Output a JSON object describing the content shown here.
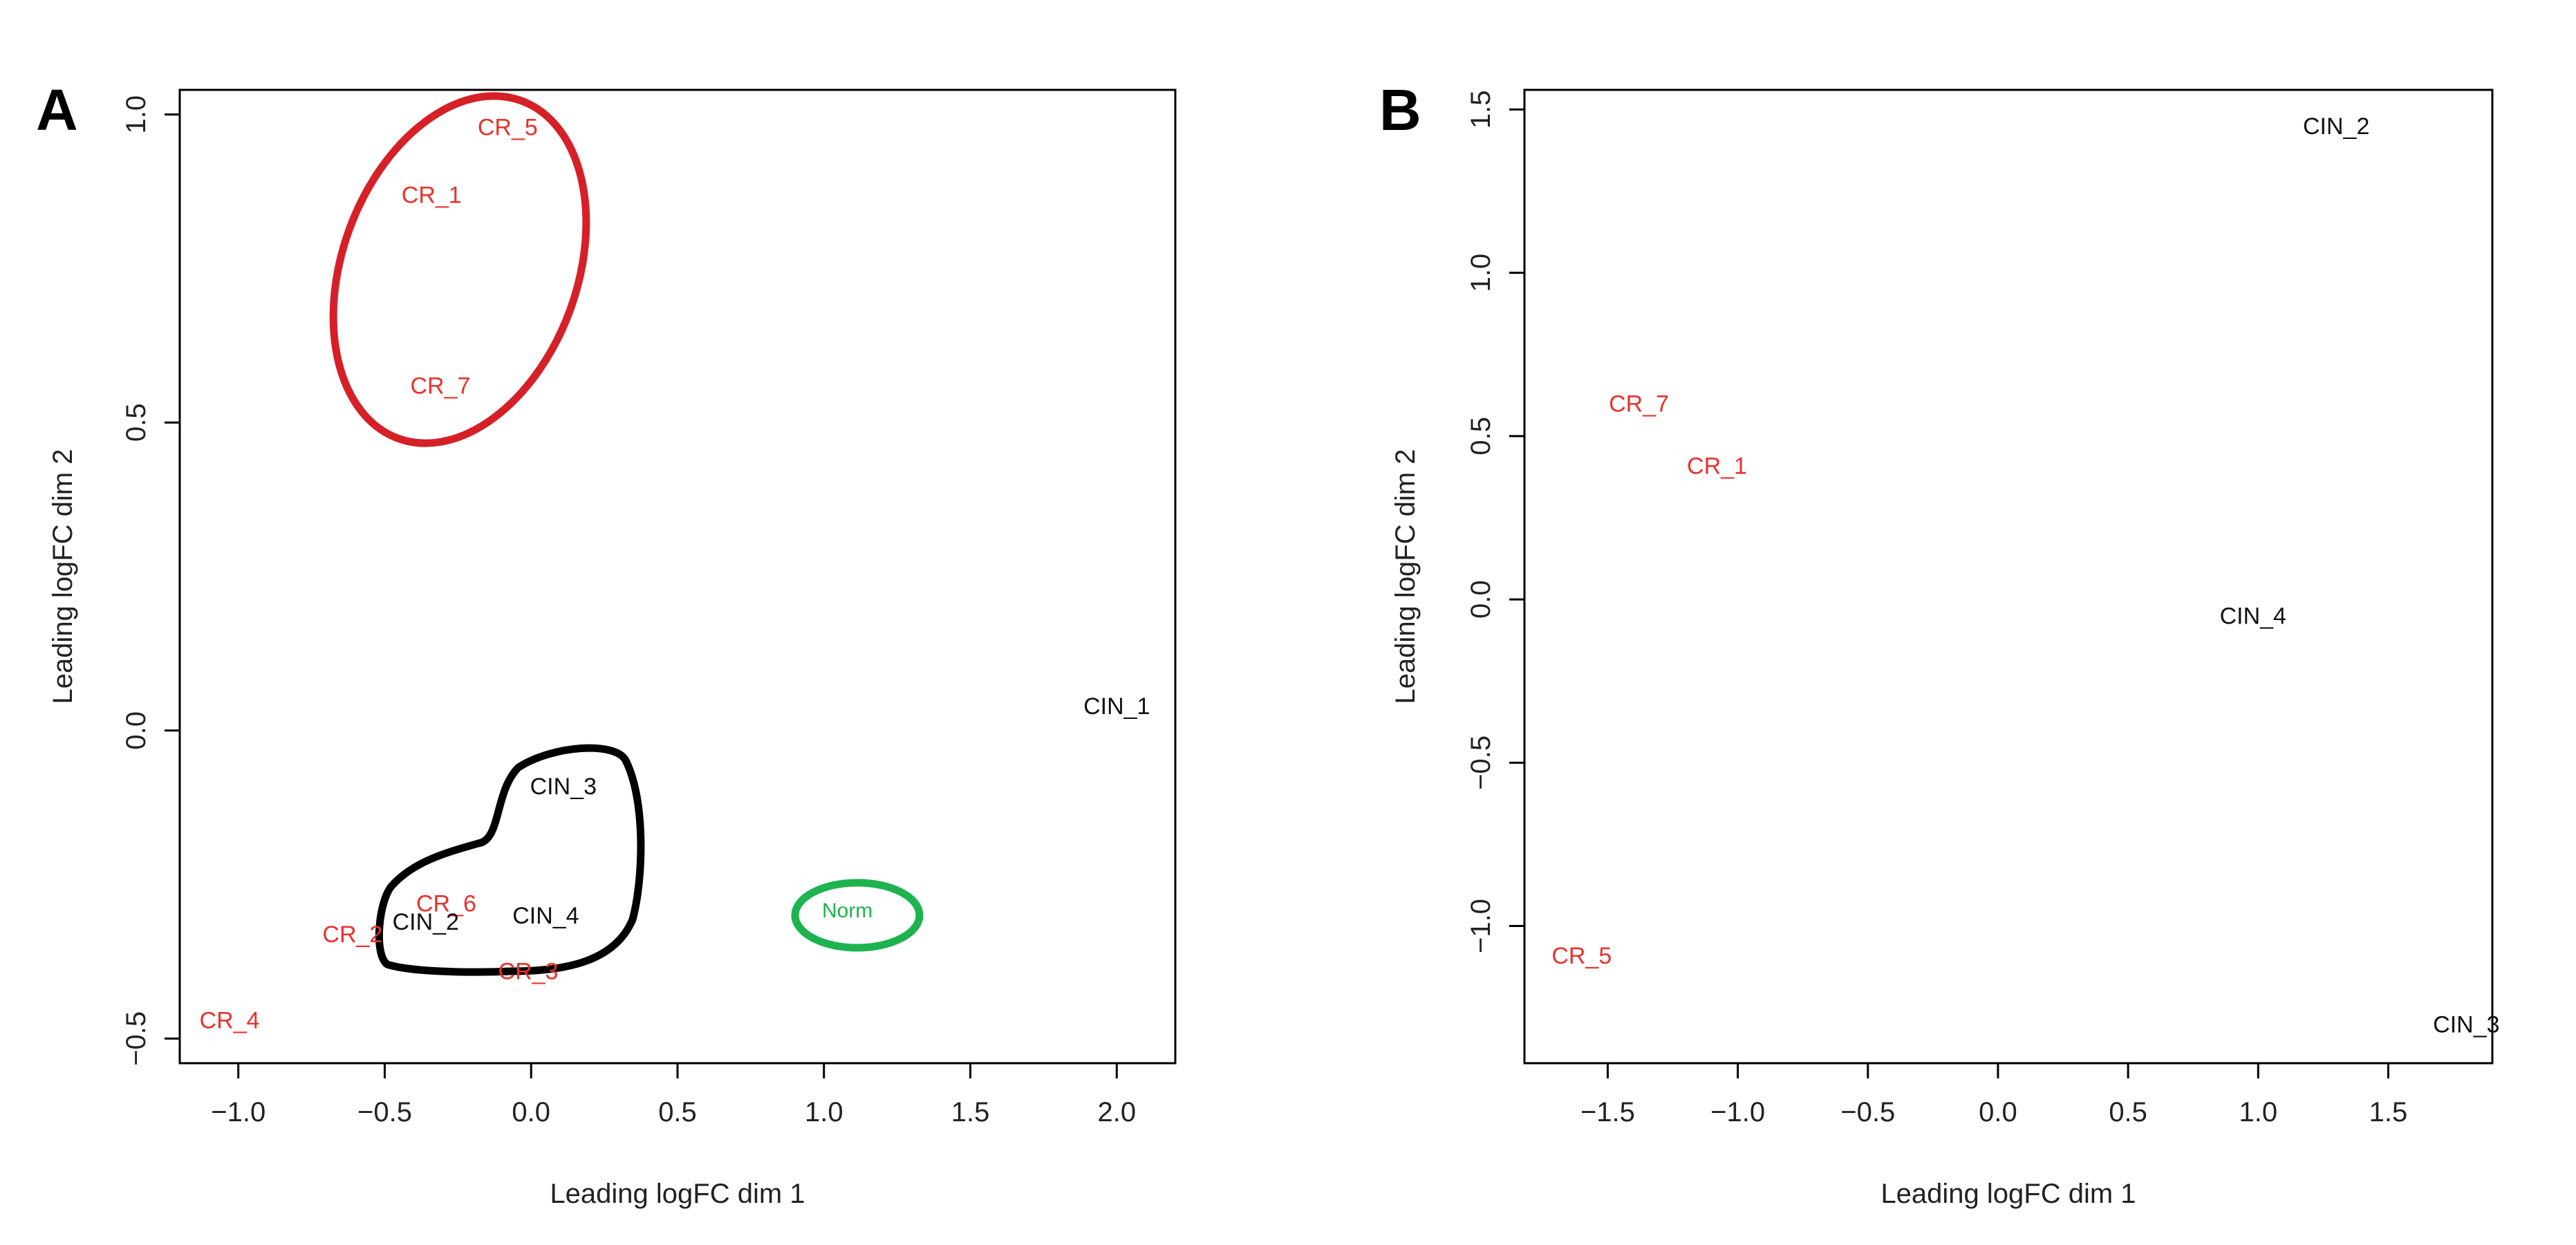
{
  "chart_data": [
    {
      "type": "scatter",
      "panel": "A",
      "xlabel": "Leading logFC dim 1",
      "ylabel": "Leading logFC dim 2",
      "xlim": [
        -1.2,
        2.2
      ],
      "ylim": [
        -0.54,
        1.04
      ],
      "xticks": [
        -1.0,
        -0.5,
        0.0,
        0.5,
        1.0,
        1.5,
        2.0
      ],
      "yticks": [
        -0.5,
        0.0,
        0.5,
        1.0
      ],
      "xtick_labels": [
        "−1.0",
        "−0.5",
        "0.0",
        "0.5",
        "1.0",
        "1.5",
        "2.0"
      ],
      "ytick_labels": [
        "−0.5",
        "0.0",
        "0.5",
        "1.0"
      ],
      "grid": false,
      "points": [
        {
          "label": "CR_5",
          "x": -0.08,
          "y": 0.98,
          "color": "#e8322d"
        },
        {
          "label": "CR_1",
          "x": -0.34,
          "y": 0.87,
          "color": "#e8322d"
        },
        {
          "label": "CR_7",
          "x": -0.31,
          "y": 0.56,
          "color": "#e8322d"
        },
        {
          "label": "CIN_1",
          "x": 2.0,
          "y": 0.04,
          "color": "#111111"
        },
        {
          "label": "CIN_3",
          "x": 0.11,
          "y": -0.09,
          "color": "#111111"
        },
        {
          "label": "CR_6",
          "x": -0.29,
          "y": -0.28,
          "color": "#e8322d"
        },
        {
          "label": "CIN_4",
          "x": 0.05,
          "y": -0.3,
          "color": "#111111"
        },
        {
          "label": "CR_2",
          "x": -0.61,
          "y": -0.33,
          "color": "#e8322d"
        },
        {
          "label": "CIN_2",
          "x": -0.36,
          "y": -0.31,
          "color": "#111111"
        },
        {
          "label": "CR_3",
          "x": -0.01,
          "y": -0.39,
          "color": "#e8322d"
        },
        {
          "label": "CR_4",
          "x": -1.03,
          "y": -0.47,
          "color": "#e8322d"
        },
        {
          "label": "Norm",
          "x": 1.08,
          "y": -0.29,
          "color": "#1db34f"
        }
      ]
    },
    {
      "type": "scatter",
      "panel": "B",
      "xlabel": "Leading logFC dim 1",
      "ylabel": "Leading logFC dim 2",
      "xlim": [
        -1.82,
        1.9
      ],
      "ylim": [
        -1.42,
        1.56
      ],
      "xticks": [
        -1.5,
        -1.0,
        -0.5,
        0.0,
        0.5,
        1.0,
        1.5
      ],
      "yticks": [
        -1.0,
        -0.5,
        0.0,
        0.5,
        1.0,
        1.5
      ],
      "xtick_labels": [
        "−1.5",
        "−1.0",
        "−0.5",
        "0.0",
        "0.5",
        "1.0",
        "1.5"
      ],
      "ytick_labels": [
        "−1.0",
        "−0.5",
        "0.0",
        "0.5",
        "1.0",
        "1.5"
      ],
      "grid": false,
      "points": [
        {
          "label": "CIN_2",
          "x": 1.3,
          "y": 1.45,
          "color": "#111111"
        },
        {
          "label": "CR_7",
          "x": -1.38,
          "y": 0.6,
          "color": "#e8322d"
        },
        {
          "label": "CR_1",
          "x": -1.08,
          "y": 0.41,
          "color": "#e8322d"
        },
        {
          "label": "CIN_4",
          "x": 0.98,
          "y": -0.05,
          "color": "#111111"
        },
        {
          "label": "CR_5",
          "x": -1.6,
          "y": -1.09,
          "color": "#e8322d"
        },
        {
          "label": "CIN_3",
          "x": 1.8,
          "y": -1.3,
          "color": "#111111"
        }
      ]
    }
  ],
  "panel_letters": [
    "A",
    "B"
  ],
  "colors": {
    "red": "#e8322d",
    "black": "#111111",
    "green": "#1db34f"
  }
}
